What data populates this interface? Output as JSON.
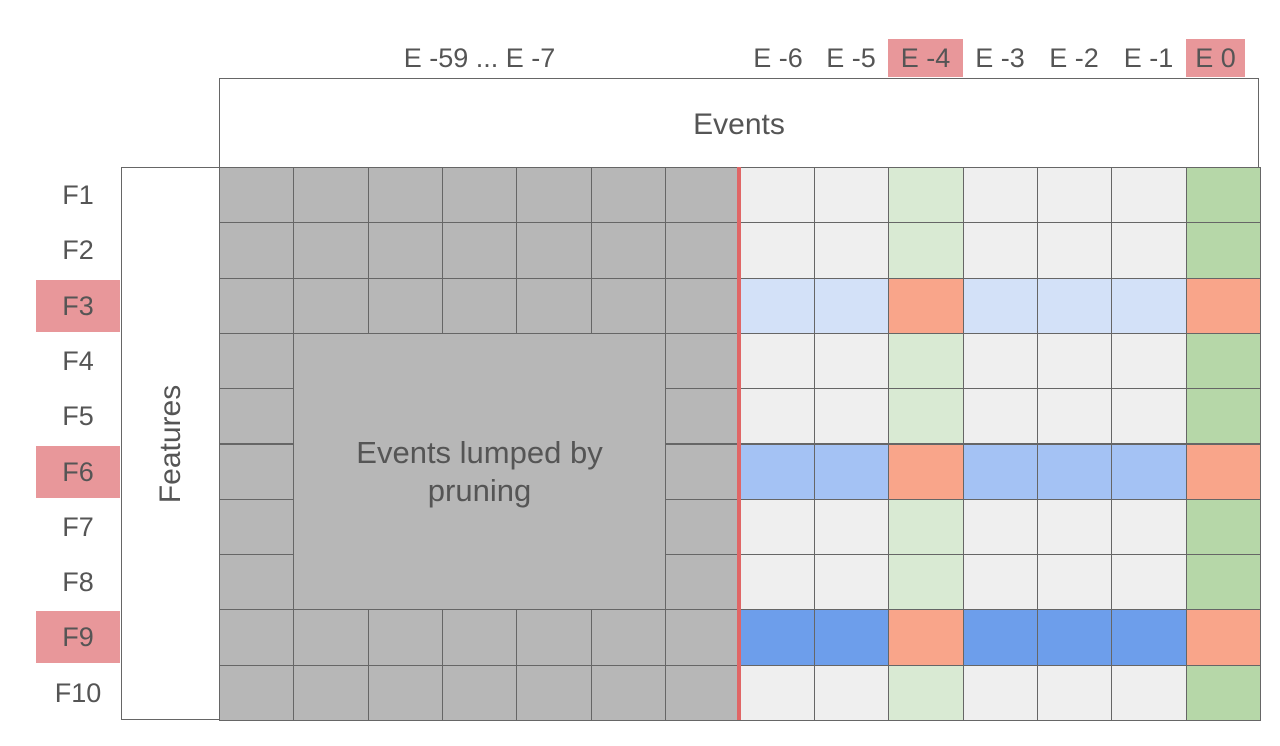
{
  "columns": {
    "pruned_label": "E -59 ... E -7",
    "recent": [
      {
        "label": "E -6",
        "highlight": false
      },
      {
        "label": "E -5",
        "highlight": false
      },
      {
        "label": "E -4",
        "highlight": true
      },
      {
        "label": "E -3",
        "highlight": false
      },
      {
        "label": "E -2",
        "highlight": false
      },
      {
        "label": "E -1",
        "highlight": false
      },
      {
        "label": "E 0",
        "highlight": true
      }
    ]
  },
  "rows": [
    {
      "label": "F1",
      "highlight": false,
      "shade": "none"
    },
    {
      "label": "F2",
      "highlight": false,
      "shade": "none"
    },
    {
      "label": "F3",
      "highlight": true,
      "shade": "light"
    },
    {
      "label": "F4",
      "highlight": false,
      "shade": "none"
    },
    {
      "label": "F5",
      "highlight": false,
      "shade": "none"
    },
    {
      "label": "F6",
      "highlight": true,
      "shade": "medium"
    },
    {
      "label": "F7",
      "highlight": false,
      "shade": "none"
    },
    {
      "label": "F8",
      "highlight": false,
      "shade": "none"
    },
    {
      "label": "F9",
      "highlight": true,
      "shade": "dark"
    },
    {
      "label": "F10",
      "highlight": false,
      "shade": "none"
    }
  ],
  "events_header": "Events",
  "features_header": "Features",
  "lumped_label": "Events lumped by\npruning",
  "colors": {
    "highlight_label": "#e8979a",
    "pruned_cell": "#b7b7b7",
    "default_cell": "#efefef",
    "col_light_green": "#d9ead3",
    "col_green": "#b6d7a8",
    "intersection": "#f9a58a",
    "row_light_blue": "#d3e1f8",
    "row_medium_blue": "#a4c2f4",
    "row_dark_blue": "#6d9eeb",
    "divider": "#e06666"
  }
}
